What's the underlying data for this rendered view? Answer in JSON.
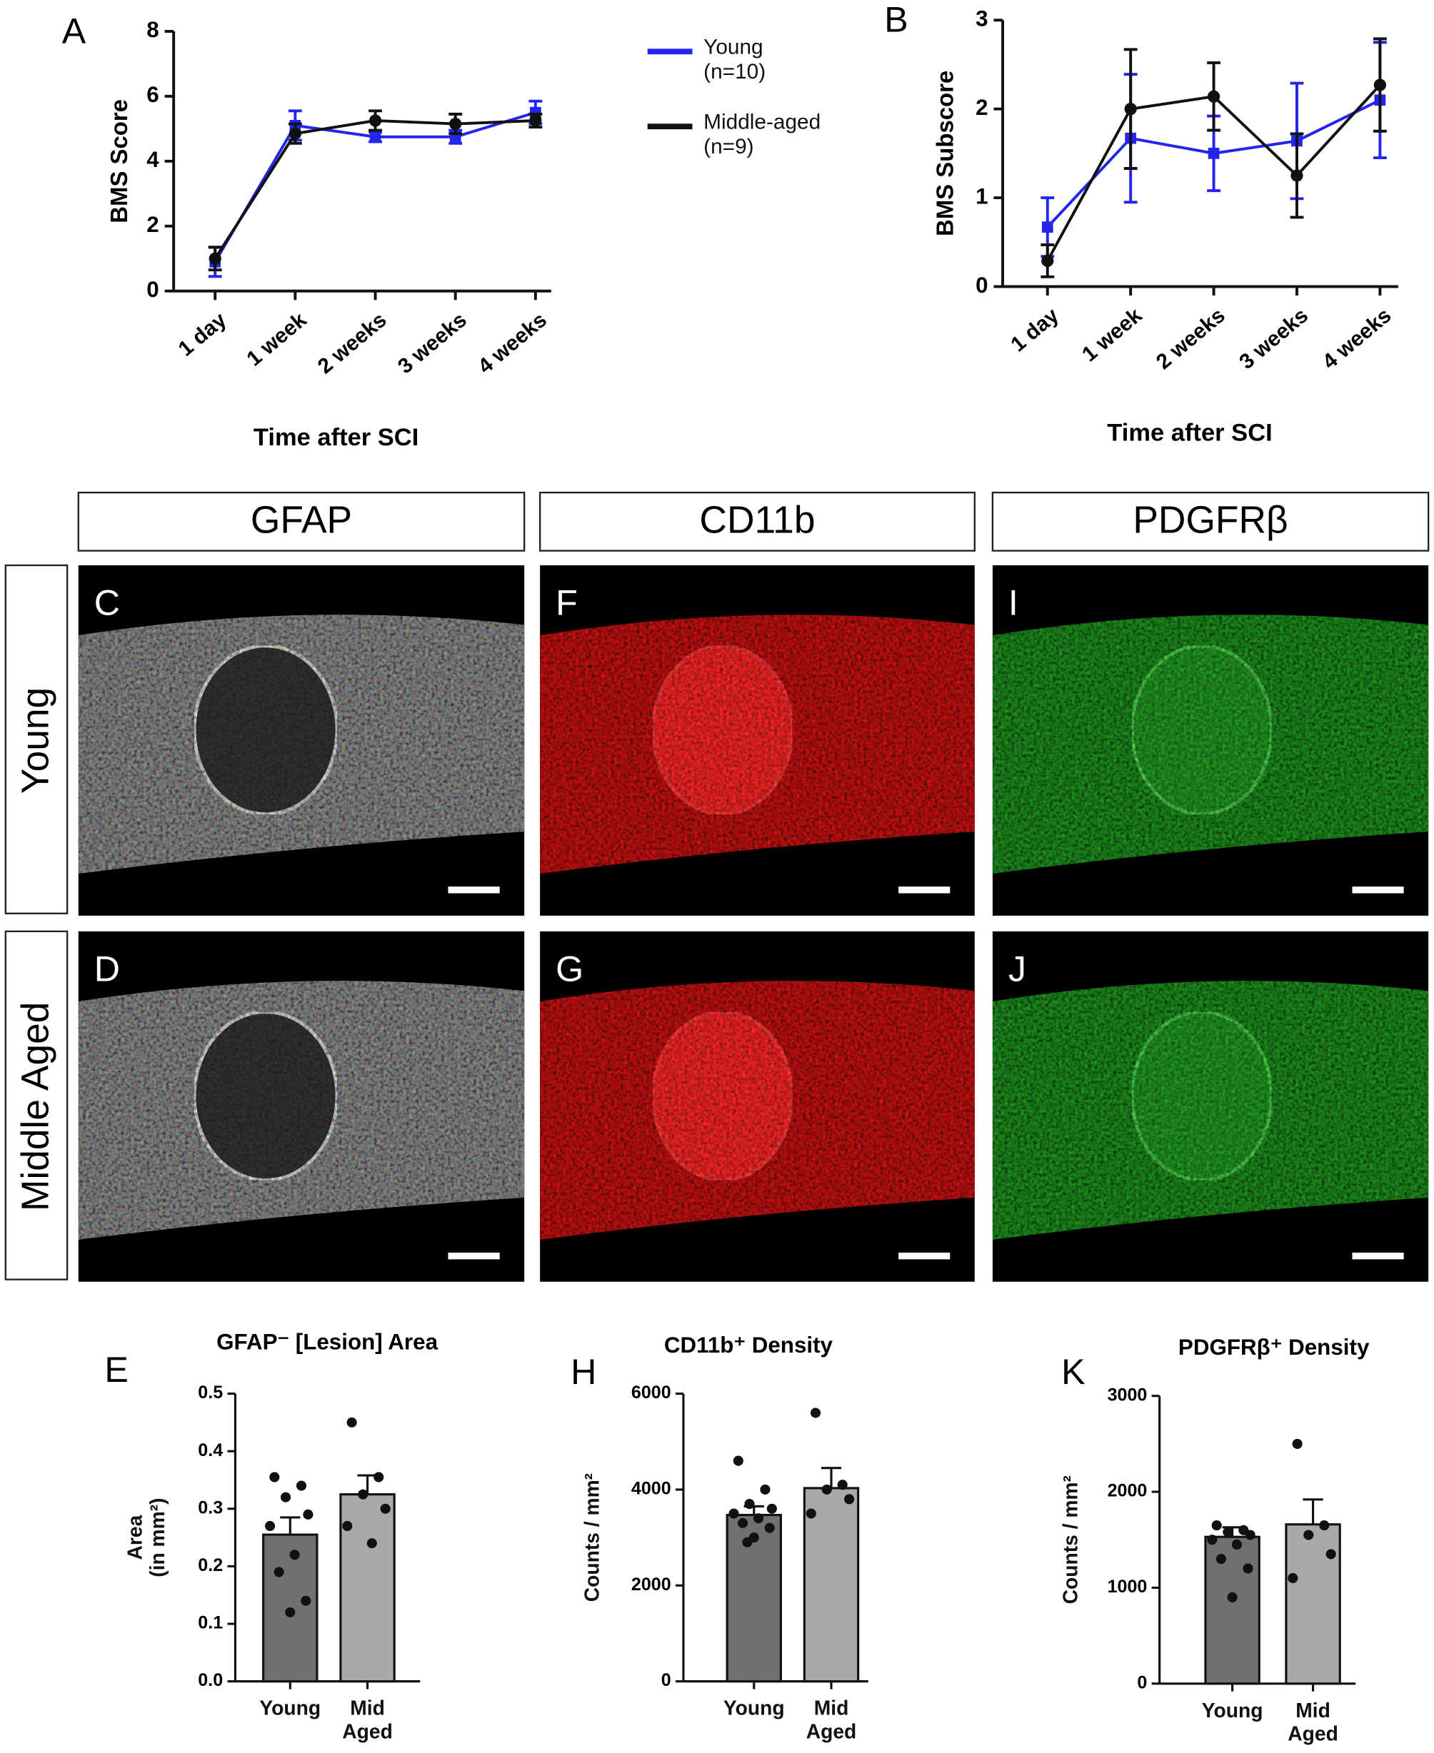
{
  "chart_data": [
    {
      "type": "line",
      "label": "A",
      "xlabel": "Time after SCI",
      "ylabel": "BMS Score",
      "categories": [
        "1 day",
        "1 week",
        "2 weeks",
        "3 weeks",
        "4 weeks"
      ],
      "ylim": [
        0,
        8
      ],
      "yticks": [
        0,
        2,
        4,
        6,
        8
      ],
      "series": [
        {
          "name": "Young\n(n=10)",
          "color": "#2424f0",
          "marker": "square",
          "values": [
            0.9,
            5.1,
            4.75,
            4.75,
            5.5
          ],
          "errors": [
            0.45,
            0.45,
            0.15,
            0.2,
            0.35
          ]
        },
        {
          "name": "Middle-aged\n(n=9)",
          "color": "#111111",
          "marker": "circle",
          "values": [
            1.0,
            4.85,
            5.25,
            5.15,
            5.25
          ],
          "errors": [
            0.35,
            0.3,
            0.3,
            0.3,
            0.2
          ]
        }
      ]
    },
    {
      "type": "line",
      "label": "B",
      "xlabel": "Time after SCI",
      "ylabel": "BMS Subscore",
      "categories": [
        "1 day",
        "1 week",
        "2 weeks",
        "3 weeks",
        "4 weeks"
      ],
      "ylim": [
        0,
        3
      ],
      "yticks": [
        0,
        1,
        2,
        3
      ],
      "series": [
        {
          "color": "#2424f0",
          "marker": "square",
          "values": [
            0.67,
            1.67,
            1.5,
            1.64,
            2.1
          ],
          "errors": [
            0.33,
            0.72,
            0.42,
            0.65,
            0.65
          ]
        },
        {
          "color": "#111111",
          "marker": "circle",
          "values": [
            0.29,
            2.0,
            2.14,
            1.25,
            2.27
          ],
          "errors": [
            0.18,
            0.67,
            0.38,
            0.47,
            0.52
          ]
        }
      ]
    },
    {
      "type": "bar",
      "label": "E",
      "title": "GFAP⁻ [Lesion] Area",
      "ylabel": "Area\n(in mm²)",
      "categories": [
        "Young",
        "Mid\nAged"
      ],
      "values": [
        0.255,
        0.325
      ],
      "errors": [
        0.03,
        0.033
      ],
      "points": [
        [
          0.355,
          0.34,
          0.32,
          0.29,
          0.27,
          0.22,
          0.19,
          0.14,
          0.12
        ],
        [
          0.45,
          0.355,
          0.325,
          0.3,
          0.27,
          0.24
        ]
      ],
      "colors": [
        "#707070",
        "#a9a9a9"
      ],
      "ylim": [
        0,
        0.5
      ],
      "yticks": [
        {
          "value": 0,
          "label": "0.0"
        },
        0.1,
        0.2,
        0.3,
        0.4,
        0.5
      ]
    },
    {
      "type": "bar",
      "label": "H",
      "title": "CD11b⁺ Density",
      "ylabel": "Counts / mm²",
      "categories": [
        "Young",
        "Mid\nAged"
      ],
      "values": [
        3470,
        4030
      ],
      "errors": [
        180,
        420
      ],
      "points": [
        [
          4600,
          4000,
          3700,
          3600,
          3500,
          3400,
          3300,
          3200,
          3000,
          2900
        ],
        [
          5600,
          4100,
          4000,
          3800,
          3500
        ]
      ],
      "colors": [
        "#707070",
        "#a9a9a9"
      ],
      "ylim": [
        0,
        6000
      ],
      "yticks": [
        0,
        2000,
        4000,
        6000
      ]
    },
    {
      "type": "bar",
      "label": "K",
      "title": "PDGFRβ⁺ Density",
      "ylabel": "Counts / mm²",
      "categories": [
        "Young",
        "Mid\nAged"
      ],
      "values": [
        1530,
        1660
      ],
      "errors": [
        100,
        260
      ],
      "points": [
        [
          1650,
          1600,
          1580,
          1550,
          1500,
          1450,
          1300,
          1200,
          900
        ],
        [
          2500,
          1650,
          1550,
          1350,
          1100
        ]
      ],
      "colors": [
        "#707070",
        "#a9a9a9"
      ],
      "ylim": [
        0,
        3000
      ],
      "yticks": [
        0,
        1000,
        2000,
        3000
      ]
    }
  ],
  "image_grid": {
    "columns": [
      "GFAP",
      "CD11b",
      "PDGFRβ"
    ],
    "rows": [
      "Young",
      "Middle Aged"
    ],
    "panels": [
      [
        "C",
        "D"
      ],
      [
        "F",
        "G"
      ],
      [
        "I",
        "J"
      ]
    ]
  }
}
